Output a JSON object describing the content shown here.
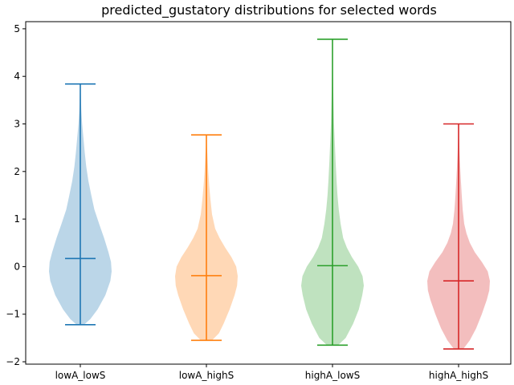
{
  "chart_data": {
    "type": "violin",
    "title": "predicted_gustatory distributions for selected words",
    "xlabel": "",
    "ylabel": "",
    "ylim": [
      -2.05,
      5.15
    ],
    "yticks": [
      -2,
      -1,
      0,
      1,
      2,
      3,
      4,
      5
    ],
    "categories": [
      "lowA_lowS",
      "lowA_highS",
      "highA_lowS",
      "highA_highS"
    ],
    "series": [
      {
        "category": "lowA_lowS",
        "color": "#1f77b4",
        "min": -1.22,
        "max": 3.84,
        "mean": 0.17,
        "density": [
          [
            -1.22,
            0.12
          ],
          [
            -1.1,
            0.32
          ],
          [
            -0.9,
            0.55
          ],
          [
            -0.6,
            0.8
          ],
          [
            -0.3,
            0.96
          ],
          [
            -0.1,
            1.0
          ],
          [
            0.1,
            0.98
          ],
          [
            0.3,
            0.9
          ],
          [
            0.6,
            0.76
          ],
          [
            0.9,
            0.6
          ],
          [
            1.2,
            0.45
          ],
          [
            1.5,
            0.35
          ],
          [
            1.8,
            0.26
          ],
          [
            2.1,
            0.19
          ],
          [
            2.4,
            0.14
          ],
          [
            2.7,
            0.1
          ],
          [
            3.0,
            0.06
          ],
          [
            3.3,
            0.03
          ],
          [
            3.6,
            0.015
          ],
          [
            3.84,
            0.005
          ]
        ]
      },
      {
        "category": "lowA_highS",
        "color": "#ff7f0e",
        "min": -1.55,
        "max": 2.77,
        "mean": -0.19,
        "density": [
          [
            -1.55,
            0.18
          ],
          [
            -1.4,
            0.4
          ],
          [
            -1.2,
            0.55
          ],
          [
            -0.9,
            0.74
          ],
          [
            -0.6,
            0.9
          ],
          [
            -0.4,
            0.98
          ],
          [
            -0.2,
            1.0
          ],
          [
            0.0,
            0.95
          ],
          [
            0.2,
            0.8
          ],
          [
            0.4,
            0.6
          ],
          [
            0.6,
            0.42
          ],
          [
            0.8,
            0.28
          ],
          [
            1.1,
            0.18
          ],
          [
            1.4,
            0.13
          ],
          [
            1.7,
            0.09
          ],
          [
            2.0,
            0.06
          ],
          [
            2.3,
            0.035
          ],
          [
            2.55,
            0.015
          ],
          [
            2.77,
            0.005
          ]
        ]
      },
      {
        "category": "highA_lowS",
        "color": "#2ca02c",
        "min": -1.65,
        "max": 4.78,
        "mean": 0.02,
        "density": [
          [
            -1.65,
            0.18
          ],
          [
            -1.5,
            0.42
          ],
          [
            -1.2,
            0.66
          ],
          [
            -0.9,
            0.84
          ],
          [
            -0.6,
            0.95
          ],
          [
            -0.4,
            1.0
          ],
          [
            -0.2,
            0.96
          ],
          [
            0.0,
            0.82
          ],
          [
            0.2,
            0.62
          ],
          [
            0.4,
            0.46
          ],
          [
            0.6,
            0.34
          ],
          [
            0.9,
            0.26
          ],
          [
            1.2,
            0.2
          ],
          [
            1.5,
            0.16
          ],
          [
            1.8,
            0.13
          ],
          [
            2.2,
            0.1
          ],
          [
            2.6,
            0.075
          ],
          [
            3.0,
            0.05
          ],
          [
            3.5,
            0.03
          ],
          [
            4.0,
            0.015
          ],
          [
            4.4,
            0.007
          ],
          [
            4.78,
            0.003
          ]
        ]
      },
      {
        "category": "highA_highS",
        "color": "#d62728",
        "min": -1.73,
        "max": 3.0,
        "mean": -0.3,
        "density": [
          [
            -1.73,
            0.15
          ],
          [
            -1.55,
            0.36
          ],
          [
            -1.3,
            0.56
          ],
          [
            -1.0,
            0.74
          ],
          [
            -0.7,
            0.9
          ],
          [
            -0.5,
            0.98
          ],
          [
            -0.3,
            1.0
          ],
          [
            -0.1,
            0.93
          ],
          [
            0.1,
            0.74
          ],
          [
            0.3,
            0.52
          ],
          [
            0.5,
            0.36
          ],
          [
            0.7,
            0.25
          ],
          [
            0.9,
            0.18
          ],
          [
            1.2,
            0.13
          ],
          [
            1.5,
            0.1
          ],
          [
            1.8,
            0.075
          ],
          [
            2.1,
            0.05
          ],
          [
            2.4,
            0.03
          ],
          [
            2.7,
            0.015
          ],
          [
            3.0,
            0.005
          ]
        ]
      }
    ]
  }
}
